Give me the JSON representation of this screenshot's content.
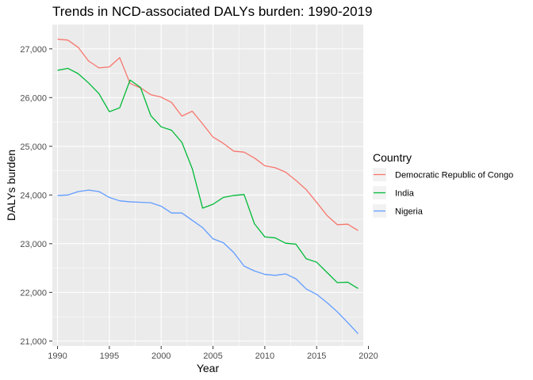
{
  "chart_data": {
    "type": "line",
    "title": "Trends in NCD-associated DALYs burden: 1990-2019",
    "xlabel": "Year",
    "ylabel": "DALYs burden",
    "xlim": [
      1989.5,
      2019.5
    ],
    "ylim": [
      20900,
      27500
    ],
    "x_ticks": [
      1990,
      1995,
      2000,
      2005,
      2010,
      2015,
      2020
    ],
    "x_tick_labels": [
      "1990",
      "1995",
      "2000",
      "2005",
      "2010",
      "2015",
      "2020"
    ],
    "y_ticks": [
      21000,
      22000,
      23000,
      24000,
      25000,
      26000,
      27000
    ],
    "y_tick_labels": [
      "21,000",
      "22,000",
      "23,000",
      "24,000",
      "25,000",
      "26,000",
      "27,000"
    ],
    "grid": true,
    "legend": {
      "title": "Country",
      "position": "right"
    },
    "x": [
      1990,
      1991,
      1992,
      1993,
      1994,
      1995,
      1996,
      1997,
      1998,
      1999,
      2000,
      2001,
      2002,
      2003,
      2004,
      2005,
      2006,
      2007,
      2008,
      2009,
      2010,
      2011,
      2012,
      2013,
      2014,
      2015,
      2016,
      2017,
      2018,
      2019
    ],
    "series": [
      {
        "name": "Democratic Republic of Congo",
        "color": "#F8766D",
        "values": [
          27200,
          27180,
          27030,
          26750,
          26610,
          26630,
          26820,
          26290,
          26200,
          26060,
          26010,
          25900,
          25620,
          25720,
          25460,
          25190,
          25060,
          24900,
          24880,
          24760,
          24600,
          24560,
          24470,
          24300,
          24110,
          23850,
          23580,
          23390,
          23400,
          23270
        ]
      },
      {
        "name": "India",
        "color": "#00BA38",
        "values": [
          26560,
          26600,
          26490,
          26300,
          26080,
          25710,
          25790,
          26360,
          26210,
          25630,
          25400,
          25330,
          25080,
          24540,
          23730,
          23810,
          23950,
          23990,
          24010,
          23410,
          23140,
          23120,
          23010,
          22990,
          22690,
          22620,
          22410,
          22200,
          22210,
          22080
        ]
      },
      {
        "name": "Nigeria",
        "color": "#619CFF",
        "values": [
          23990,
          24000,
          24070,
          24100,
          24070,
          23950,
          23880,
          23860,
          23850,
          23840,
          23770,
          23630,
          23630,
          23480,
          23330,
          23100,
          23020,
          22820,
          22540,
          22440,
          22370,
          22350,
          22380,
          22280,
          22070,
          21960,
          21790,
          21600,
          21380,
          21150
        ]
      }
    ]
  }
}
